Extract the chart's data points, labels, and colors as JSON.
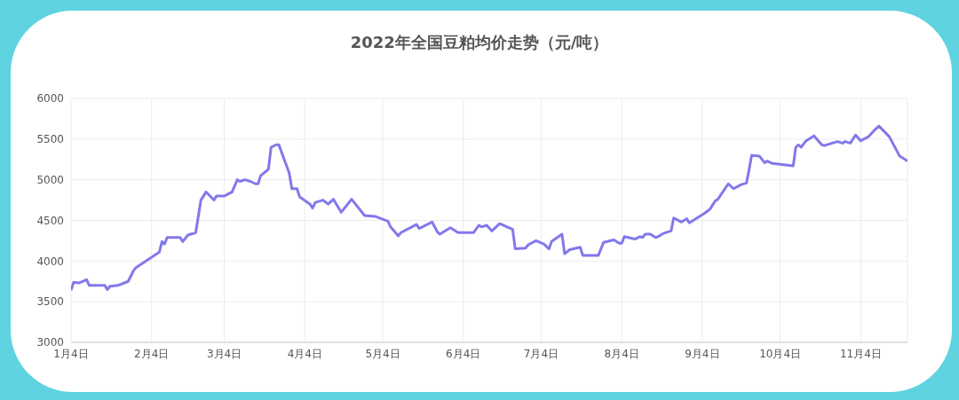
{
  "chart_data": {
    "type": "line",
    "title": "2022年全国豆粕均价走势（元/吨）",
    "x": [
      "--01-04",
      "--01-05",
      "--01-07",
      "--01-10",
      "--01-11",
      "--01-17",
      "--01-18",
      "--01-19",
      "--01-22",
      "--01-26",
      "--01-28",
      "--01-29",
      "--02-07",
      "--02-08",
      "--02-09",
      "--02-10",
      "--02-15",
      "--02-16",
      "--02-18",
      "--02-21",
      "--02-23",
      "--02-25",
      "--02-28",
      "--03-01",
      "--03-04",
      "--03-07",
      "--03-09",
      "--03-10",
      "--03-12",
      "--03-14",
      "--03-16",
      "--03-17",
      "--03-18",
      "--03-21",
      "--03-22",
      "--03-24",
      "--03-25",
      "--03-29",
      "--03-30",
      "--04-01",
      "--04-02",
      "--04-06",
      "--04-07",
      "--04-08",
      "--04-11",
      "--04-13",
      "--04-15",
      "--04-18",
      "--04-22",
      "--04-27",
      "--05-01",
      "--05-06",
      "--05-07",
      "--05-10",
      "--05-11",
      "--05-17",
      "--05-18",
      "--05-23",
      "--05-25",
      "--05-26",
      "--05-30",
      "--06-02",
      "--06-08",
      "--06-10",
      "--06-11",
      "--06-13",
      "--06-15",
      "--06-18",
      "--06-23",
      "--06-24",
      "--06-28",
      "--06-29",
      "--07-02",
      "--07-05",
      "--07-07",
      "--07-08",
      "--07-12",
      "--07-13",
      "--07-15",
      "--07-19",
      "--07-20",
      "--07-26",
      "--07-28",
      "--08-01",
      "--08-03",
      "--08-04",
      "--08-05",
      "--08-09",
      "--08-11",
      "--08-12",
      "--08-13",
      "--08-15",
      "--08-17",
      "--08-18",
      "--08-20",
      "--08-23",
      "--08-24",
      "--08-27",
      "--08-29",
      "--08-30",
      "--09-05",
      "--09-07",
      "--09-09",
      "--09-10",
      "--09-14",
      "--09-16",
      "--09-19",
      "--09-21",
      "--09-22",
      "--09-23",
      "--09-26",
      "--09-28",
      "--09-29",
      "--10-01",
      "--10-09",
      "--10-10",
      "--10-11",
      "--10-12",
      "--10-14",
      "--10-17",
      "--10-20",
      "--10-21",
      "--10-26",
      "--10-28",
      "--10-29",
      "--10-31",
      "--11-02",
      "--11-04",
      "--11-07",
      "--11-09",
      "--11-11",
      "--11-15",
      "--11-16",
      "--11-19",
      "--11-22"
    ],
    "series": [
      {
        "color": "#8378ea",
        "values": [
          3640,
          3740,
          3730,
          3770,
          3700,
          3700,
          3650,
          3690,
          3700,
          3750,
          3880,
          3920,
          4110,
          4240,
          4210,
          4290,
          4290,
          4240,
          4320,
          4350,
          4750,
          4850,
          4750,
          4800,
          4800,
          4850,
          5000,
          4980,
          5000,
          4980,
          4950,
          4950,
          5050,
          5130,
          5400,
          5430,
          5430,
          5080,
          4890,
          4890,
          4790,
          4700,
          4650,
          4720,
          4750,
          4700,
          4760,
          4600,
          4760,
          4560,
          4550,
          4490,
          4420,
          4310,
          4350,
          4450,
          4400,
          4480,
          4360,
          4330,
          4410,
          4350,
          4350,
          4440,
          4420,
          4440,
          4370,
          4460,
          4390,
          4150,
          4160,
          4200,
          4250,
          4210,
          4150,
          4240,
          4330,
          4090,
          4140,
          4170,
          4070,
          4070,
          4230,
          4260,
          4220,
          4220,
          4300,
          4270,
          4300,
          4290,
          4330,
          4330,
          4290,
          4300,
          4340,
          4370,
          4530,
          4480,
          4520,
          4470,
          4590,
          4640,
          4740,
          4760,
          4950,
          4890,
          4940,
          4960,
          5120,
          5300,
          5290,
          5210,
          5230,
          5200,
          5170,
          5400,
          5430,
          5400,
          5480,
          5540,
          5430,
          5420,
          5470,
          5450,
          5470,
          5450,
          5550,
          5480,
          5530,
          5600,
          5660,
          5530,
          5470,
          5290,
          5230
        ]
      }
    ],
    "xlim": [
      "--01-04",
      "--11-22"
    ],
    "xticks": [
      {
        "value": "--01-04",
        "label": "1月4日"
      },
      {
        "value": "--02-04",
        "label": "2月4日"
      },
      {
        "value": "--03-04",
        "label": "3月4日"
      },
      {
        "value": "--04-04",
        "label": "4月4日"
      },
      {
        "value": "--05-04",
        "label": "5月4日"
      },
      {
        "value": "--06-04",
        "label": "6月4日"
      },
      {
        "value": "--07-04",
        "label": "7月4日"
      },
      {
        "value": "--08-04",
        "label": "8月4日"
      },
      {
        "value": "--09-04",
        "label": "9月4日"
      },
      {
        "value": "--10-04",
        "label": "10月4日"
      },
      {
        "value": "--11-04",
        "label": "11月4日"
      }
    ],
    "ylim": [
      3000,
      6000
    ],
    "yticks": [
      3000,
      3500,
      4000,
      4500,
      5000,
      5500,
      6000
    ],
    "grid": true,
    "marker": "none",
    "line_style": "solid"
  }
}
